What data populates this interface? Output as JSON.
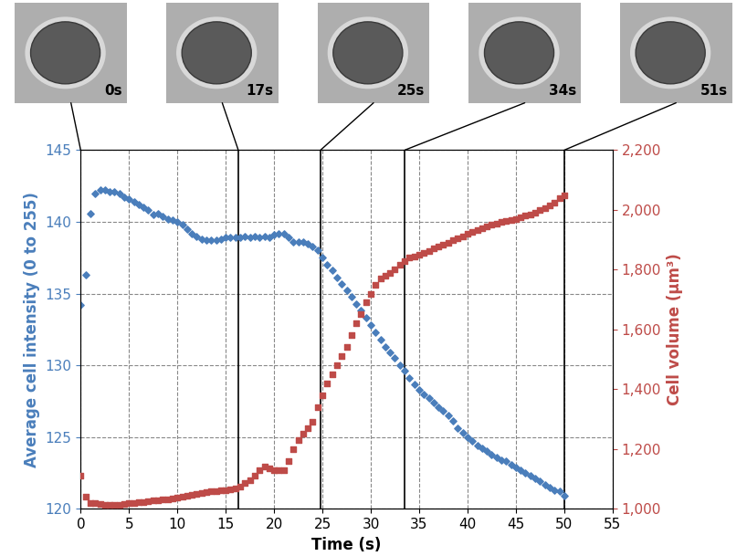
{
  "chart_data": {
    "type": "scatter",
    "x_label": "Time (s)",
    "y_label": "Average cell intensity (0 to 255)",
    "y2_label": "Cell volume (μm³)",
    "x": [
      0,
      0.5,
      1,
      1.5,
      2,
      2.5,
      3,
      3.5,
      4,
      4.5,
      5,
      5.5,
      6,
      6.5,
      7,
      7.5,
      8,
      8.5,
      9,
      9.5,
      10,
      10.5,
      11,
      11.5,
      12,
      12.5,
      13,
      13.5,
      14,
      14.5,
      15,
      15.5,
      16,
      16.5,
      17,
      17.5,
      18,
      18.5,
      19,
      19.5,
      20,
      20.5,
      21,
      21.5,
      22,
      22.5,
      23,
      23.5,
      24,
      24.5,
      25,
      25.5,
      26,
      26.5,
      27,
      27.5,
      28,
      28.5,
      29,
      29.5,
      30,
      30.5,
      31,
      31.5,
      32,
      32.5,
      33,
      33.5,
      34,
      34.5,
      35,
      35.5,
      36,
      36.5,
      37,
      37.5,
      38,
      38.5,
      39,
      39.5,
      40,
      40.5,
      41,
      41.5,
      42,
      42.5,
      43,
      43.5,
      44,
      44.5,
      45,
      45.5,
      46,
      46.5,
      47,
      47.5,
      48,
      48.5,
      49,
      49.5,
      50
    ],
    "series": [
      {
        "name": "Average cell intensity",
        "color": "#4a7ebb",
        "marker": "diamond",
        "values": [
          134.2,
          136.3,
          140.6,
          142.0,
          142.2,
          142.2,
          142.1,
          142.1,
          142.0,
          141.7,
          141.6,
          141.4,
          141.2,
          141.0,
          140.8,
          140.5,
          140.6,
          140.4,
          140.2,
          140.1,
          140.0,
          139.8,
          139.5,
          139.2,
          139.0,
          138.8,
          138.7,
          138.7,
          138.7,
          138.8,
          138.9,
          138.9,
          138.9,
          138.9,
          139.0,
          138.9,
          139.0,
          138.9,
          139.0,
          138.9,
          139.1,
          139.2,
          139.2,
          138.9,
          138.6,
          138.6,
          138.6,
          138.5,
          138.3,
          138.0,
          137.5,
          137.0,
          136.6,
          136.1,
          135.7,
          135.2,
          134.8,
          134.3,
          133.8,
          133.3,
          132.8,
          132.3,
          131.8,
          131.3,
          130.9,
          130.5,
          130.0,
          129.6,
          129.1,
          128.7,
          128.3,
          128.0,
          127.7,
          127.4,
          127.1,
          126.8,
          126.5,
          126.1,
          125.6,
          125.3,
          125.0,
          124.7,
          124.4,
          124.2,
          124.0,
          123.8,
          123.6,
          123.4,
          123.3,
          123.1,
          122.9,
          122.7,
          122.5,
          122.3,
          122.1,
          121.9,
          121.7,
          121.5,
          121.3,
          121.2,
          120.9
        ]
      },
      {
        "name": "Cell volume",
        "color": "#be4b48",
        "marker": "square",
        "axis": "y2",
        "values": [
          1110,
          1040,
          1020,
          1020,
          1015,
          1013,
          1012,
          1013,
          1013,
          1015,
          1018,
          1020,
          1022,
          1023,
          1025,
          1027,
          1028,
          1030,
          1032,
          1034,
          1036,
          1040,
          1043,
          1046,
          1050,
          1053,
          1055,
          1058,
          1060,
          1062,
          1063,
          1065,
          1067,
          1075,
          1085,
          1095,
          1110,
          1130,
          1140,
          1135,
          1130,
          1128,
          1130,
          1160,
          1200,
          1230,
          1250,
          1270,
          1290,
          1340,
          1380,
          1420,
          1450,
          1480,
          1510,
          1540,
          1580,
          1620,
          1650,
          1690,
          1720,
          1750,
          1770,
          1780,
          1790,
          1800,
          1815,
          1830,
          1840,
          1845,
          1850,
          1855,
          1862,
          1870,
          1878,
          1885,
          1890,
          1898,
          1905,
          1912,
          1920,
          1925,
          1932,
          1940,
          1945,
          1950,
          1955,
          1960,
          1962,
          1966,
          1970,
          1975,
          1980,
          1985,
          1990,
          2000,
          2005,
          2015,
          2025,
          2040,
          2050
        ]
      }
    ],
    "xlim": [
      0,
      55
    ],
    "xticks": [
      0,
      5,
      10,
      15,
      20,
      25,
      30,
      35,
      40,
      45,
      50,
      55
    ],
    "ylim": [
      120,
      145
    ],
    "yticks": [
      120,
      125,
      130,
      135,
      140,
      145
    ],
    "y2lim": [
      1000,
      2200
    ],
    "y2ticks": [
      {
        "value": 1000,
        "label": "1,000"
      },
      {
        "value": 1200,
        "label": "1,200"
      },
      {
        "value": 1400,
        "label": "1,400"
      },
      {
        "value": 1600,
        "label": "1,600"
      },
      {
        "value": 1800,
        "label": "1,800"
      },
      {
        "value": 2000,
        "label": "2,000"
      },
      {
        "value": 2200,
        "label": "2,200"
      }
    ],
    "grid": true,
    "snapshots": [
      {
        "label": "0s",
        "time": 0
      },
      {
        "label": "17s",
        "time": 16.3
      },
      {
        "label": "25s",
        "time": 24.8
      },
      {
        "label": "34s",
        "time": 33.5
      },
      {
        "label": "51s",
        "time": 50
      }
    ]
  }
}
